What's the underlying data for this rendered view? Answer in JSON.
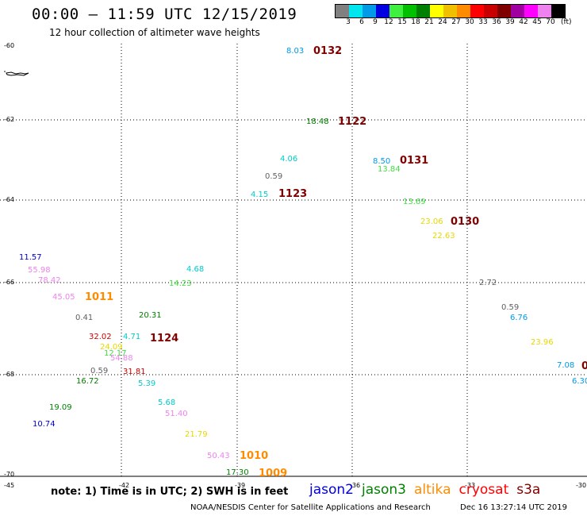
{
  "header": {
    "title": "00:00 — 11:59 UTC 12/15/2019",
    "subtitle": "12 hour collection of altimeter wave heights"
  },
  "legend": {
    "unit": "(ft)",
    "swatches": [
      {
        "label": "3",
        "color": "#808080"
      },
      {
        "label": "6",
        "color": "#00e5ee"
      },
      {
        "label": "9",
        "color": "#009ae8"
      },
      {
        "label": "12",
        "color": "#0000e0"
      },
      {
        "label": "15",
        "color": "#40f040"
      },
      {
        "label": "18",
        "color": "#00c000"
      },
      {
        "label": "21",
        "color": "#008000"
      },
      {
        "label": "24",
        "color": "#ffff00"
      },
      {
        "label": "27",
        "color": "#f0c000"
      },
      {
        "label": "30",
        "color": "#ff8c00"
      },
      {
        "label": "33",
        "color": "#ff0000"
      },
      {
        "label": "36",
        "color": "#c80000"
      },
      {
        "label": "39",
        "color": "#800000"
      },
      {
        "label": "42",
        "color": "#a000a0"
      },
      {
        "label": "45",
        "color": "#ff00ff"
      },
      {
        "label": "70",
        "color": "#ee82ee"
      },
      {
        "label": "",
        "color": "#000000"
      }
    ]
  },
  "map": {
    "x_ticks": [
      "-45",
      "-42",
      "-39",
      "-36",
      "-33",
      "-30"
    ],
    "y_ticks": [
      "-60",
      "-62",
      "-64",
      "-66",
      "-68",
      "-70"
    ],
    "observations": [
      {
        "text": "8.03",
        "color": "#009ae8"
      },
      {
        "text": "18.48",
        "color": "#008000"
      },
      {
        "text": "4.06",
        "color": "#00cccc"
      },
      {
        "text": "0.59",
        "color": "#606060"
      },
      {
        "text": "4.15",
        "color": "#00cccc"
      },
      {
        "text": "8.50",
        "color": "#009ae8"
      },
      {
        "text": "13.84",
        "color": "#40e040"
      },
      {
        "text": "13.69",
        "color": "#40e040"
      },
      {
        "text": "23.06",
        "color": "#e6d800"
      },
      {
        "text": "22.63",
        "color": "#e6d800"
      },
      {
        "text": "2.72",
        "color": "#606060"
      },
      {
        "text": "0.59",
        "color": "#606060"
      },
      {
        "text": "6.76",
        "color": "#009ae8"
      },
      {
        "text": "23.96",
        "color": "#e6d800"
      },
      {
        "text": "7.08",
        "color": "#009ae8"
      },
      {
        "text": "6.30",
        "color": "#009ae8"
      },
      {
        "text": "11.57",
        "color": "#0000d0"
      },
      {
        "text": "55.98",
        "color": "#ee82ee"
      },
      {
        "text": "78.42",
        "color": "#ee82ee"
      },
      {
        "text": "4.68",
        "color": "#00cccc"
      },
      {
        "text": "14.23",
        "color": "#40e040"
      },
      {
        "text": "45.05",
        "color": "#ee82ee"
      },
      {
        "text": "20.31",
        "color": "#008000"
      },
      {
        "text": "0.41",
        "color": "#606060"
      },
      {
        "text": "32.02",
        "color": "#d00000"
      },
      {
        "text": "4.71",
        "color": "#00cccc"
      },
      {
        "text": "24.09",
        "color": "#e6d800"
      },
      {
        "text": "12.17",
        "color": "#40e040"
      },
      {
        "text": "54.88",
        "color": "#ee82ee"
      },
      {
        "text": "0.59",
        "color": "#606060"
      },
      {
        "text": "31.81",
        "color": "#d00000"
      },
      {
        "text": "16.72",
        "color": "#008000"
      },
      {
        "text": "5.39",
        "color": "#00cccc"
      },
      {
        "text": "19.09",
        "color": "#008000"
      },
      {
        "text": "5.68",
        "color": "#00cccc"
      },
      {
        "text": "51.40",
        "color": "#ee82ee"
      },
      {
        "text": "10.74",
        "color": "#0000d0"
      },
      {
        "text": "21.79",
        "color": "#e6d800"
      },
      {
        "text": "50.43",
        "color": "#ee82ee"
      },
      {
        "text": "17.30",
        "color": "#008000"
      }
    ],
    "pass_times": [
      {
        "text": "0132",
        "color": "#800000"
      },
      {
        "text": "1122",
        "color": "#800000"
      },
      {
        "text": "0131",
        "color": "#800000"
      },
      {
        "text": "1123",
        "color": "#800000"
      },
      {
        "text": "0130",
        "color": "#800000"
      },
      {
        "text": "1011",
        "color": "#ff8c00"
      },
      {
        "text": "1124",
        "color": "#800000"
      },
      {
        "text": "1010",
        "color": "#ff8c00"
      },
      {
        "text": "1009",
        "color": "#ff8c00"
      },
      {
        "text": "0",
        "color": "#800000"
      }
    ]
  },
  "footer": {
    "note": "note: 1) Time is in UTC; 2) SWH is in feet",
    "satellites": [
      {
        "name": "jason2",
        "color": "#0000e0"
      },
      {
        "name": "jason3",
        "color": "#008000"
      },
      {
        "name": "altika",
        "color": "#ff8c00"
      },
      {
        "name": "cryosat",
        "color": "#ff0000"
      },
      {
        "name": "s3a",
        "color": "#800000"
      }
    ],
    "credit": "NOAA/NESDIS Center for Satellite Applications and Research",
    "timestamp": "Dec 16 13:27:14 UTC 2019"
  }
}
